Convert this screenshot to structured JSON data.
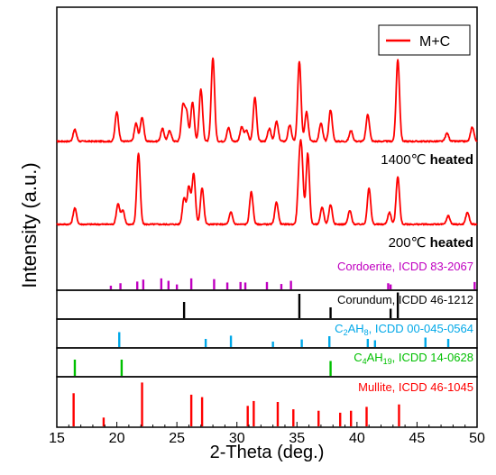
{
  "chart_data": {
    "type": "line",
    "xlabel": "2-Theta (deg.)",
    "ylabel": "Intensity (a.u.)",
    "xlim": [
      15,
      50
    ],
    "xticks": [
      15,
      20,
      25,
      30,
      35,
      40,
      45,
      50
    ],
    "legend": {
      "position": "top-right",
      "entries": [
        {
          "label": "M+C",
          "color": "#ff0000"
        }
      ]
    },
    "patterns": [
      {
        "label": "1400℃ heated",
        "label_main": "1400℃ ",
        "label_bold": "heated",
        "color": "#ff0000",
        "peaks": [
          [
            16.5,
            0.13
          ],
          [
            20.0,
            0.33
          ],
          [
            21.6,
            0.2
          ],
          [
            22.1,
            0.27
          ],
          [
            23.8,
            0.14
          ],
          [
            24.4,
            0.12
          ],
          [
            25.5,
            0.38
          ],
          [
            25.8,
            0.32
          ],
          [
            26.3,
            0.44
          ],
          [
            27.0,
            0.58
          ],
          [
            28.0,
            0.93
          ],
          [
            29.3,
            0.15
          ],
          [
            30.4,
            0.16
          ],
          [
            30.8,
            0.12
          ],
          [
            31.5,
            0.49
          ],
          [
            32.7,
            0.14
          ],
          [
            33.3,
            0.22
          ],
          [
            34.4,
            0.18
          ],
          [
            35.2,
            0.89
          ],
          [
            35.8,
            0.33
          ],
          [
            37.0,
            0.2
          ],
          [
            37.8,
            0.35
          ],
          [
            39.5,
            0.12
          ],
          [
            40.9,
            0.3
          ],
          [
            43.4,
            0.91
          ],
          [
            47.5,
            0.09
          ],
          [
            49.6,
            0.16
          ]
        ]
      },
      {
        "label": "200℃ heated",
        "label_main": "200℃ ",
        "label_bold": "heated",
        "color": "#ff0000",
        "peaks": [
          [
            16.5,
            0.19
          ],
          [
            20.1,
            0.24
          ],
          [
            20.5,
            0.16
          ],
          [
            21.8,
            0.83
          ],
          [
            25.6,
            0.31
          ],
          [
            26.0,
            0.44
          ],
          [
            26.4,
            0.59
          ],
          [
            27.1,
            0.43
          ],
          [
            29.5,
            0.14
          ],
          [
            31.2,
            0.38
          ],
          [
            33.3,
            0.26
          ],
          [
            35.2,
            0.58
          ],
          [
            35.4,
            0.68
          ],
          [
            35.9,
            0.83
          ],
          [
            37.1,
            0.2
          ],
          [
            37.8,
            0.23
          ],
          [
            39.4,
            0.16
          ],
          [
            41.0,
            0.42
          ],
          [
            42.7,
            0.14
          ],
          [
            43.4,
            0.56
          ],
          [
            47.6,
            0.1
          ],
          [
            49.2,
            0.14
          ]
        ]
      }
    ],
    "references": [
      {
        "label": "Cordoerite, ICDD 83-2067",
        "color": "#c000c0",
        "lines": [
          [
            19.5,
            0.15
          ],
          [
            20.3,
            0.25
          ],
          [
            21.7,
            0.32
          ],
          [
            22.2,
            0.4
          ],
          [
            23.7,
            0.45
          ],
          [
            24.3,
            0.35
          ],
          [
            25.0,
            0.2
          ],
          [
            26.2,
            0.45
          ],
          [
            28.1,
            0.42
          ],
          [
            29.2,
            0.28
          ],
          [
            30.3,
            0.3
          ],
          [
            30.7,
            0.28
          ],
          [
            32.5,
            0.3
          ],
          [
            33.7,
            0.22
          ],
          [
            34.5,
            0.35
          ],
          [
            42.6,
            0.25
          ],
          [
            42.8,
            0.2
          ],
          [
            49.8,
            0.3
          ]
        ]
      },
      {
        "label": "Corundum, ICDD 46-1212",
        "color": "#000000",
        "lines": [
          [
            25.6,
            0.6
          ],
          [
            35.2,
            0.9
          ],
          [
            37.8,
            0.4
          ],
          [
            43.4,
            0.95
          ],
          [
            42.8,
            0.35
          ]
        ]
      },
      {
        "label_parts": [
          [
            "C",
            ""
          ],
          [
            "2",
            "sub"
          ],
          [
            "AH",
            ""
          ],
          [
            "8",
            "sub"
          ],
          [
            ", ICDD 00-045-0564",
            ""
          ]
        ],
        "color": "#00a8e8",
        "lines": [
          [
            20.2,
            0.55
          ],
          [
            27.4,
            0.3
          ],
          [
            29.5,
            0.42
          ],
          [
            33.0,
            0.2
          ],
          [
            35.4,
            0.28
          ],
          [
            37.7,
            0.4
          ],
          [
            40.9,
            0.3
          ],
          [
            41.5,
            0.25
          ],
          [
            45.7,
            0.35
          ],
          [
            47.6,
            0.3
          ]
        ]
      },
      {
        "label_parts": [
          [
            "C",
            ""
          ],
          [
            "4",
            "sub"
          ],
          [
            "AH",
            ""
          ],
          [
            "19",
            "sub"
          ],
          [
            ", ICDD 14-0628",
            ""
          ]
        ],
        "color": "#00c000",
        "lines": [
          [
            16.5,
            0.6
          ],
          [
            20.4,
            0.6
          ],
          [
            37.8,
            0.55
          ]
        ]
      },
      {
        "label": "Mullite, ICDD 46-1045",
        "color": "#ff0000",
        "lines": [
          [
            16.4,
            0.68
          ],
          [
            18.9,
            0.18
          ],
          [
            22.1,
            0.9
          ],
          [
            26.2,
            0.65
          ],
          [
            27.1,
            0.6
          ],
          [
            30.9,
            0.42
          ],
          [
            31.4,
            0.52
          ],
          [
            33.4,
            0.5
          ],
          [
            34.7,
            0.35
          ],
          [
            36.8,
            0.32
          ],
          [
            38.6,
            0.28
          ],
          [
            39.5,
            0.32
          ],
          [
            40.8,
            0.4
          ],
          [
            43.5,
            0.45
          ]
        ]
      }
    ]
  }
}
